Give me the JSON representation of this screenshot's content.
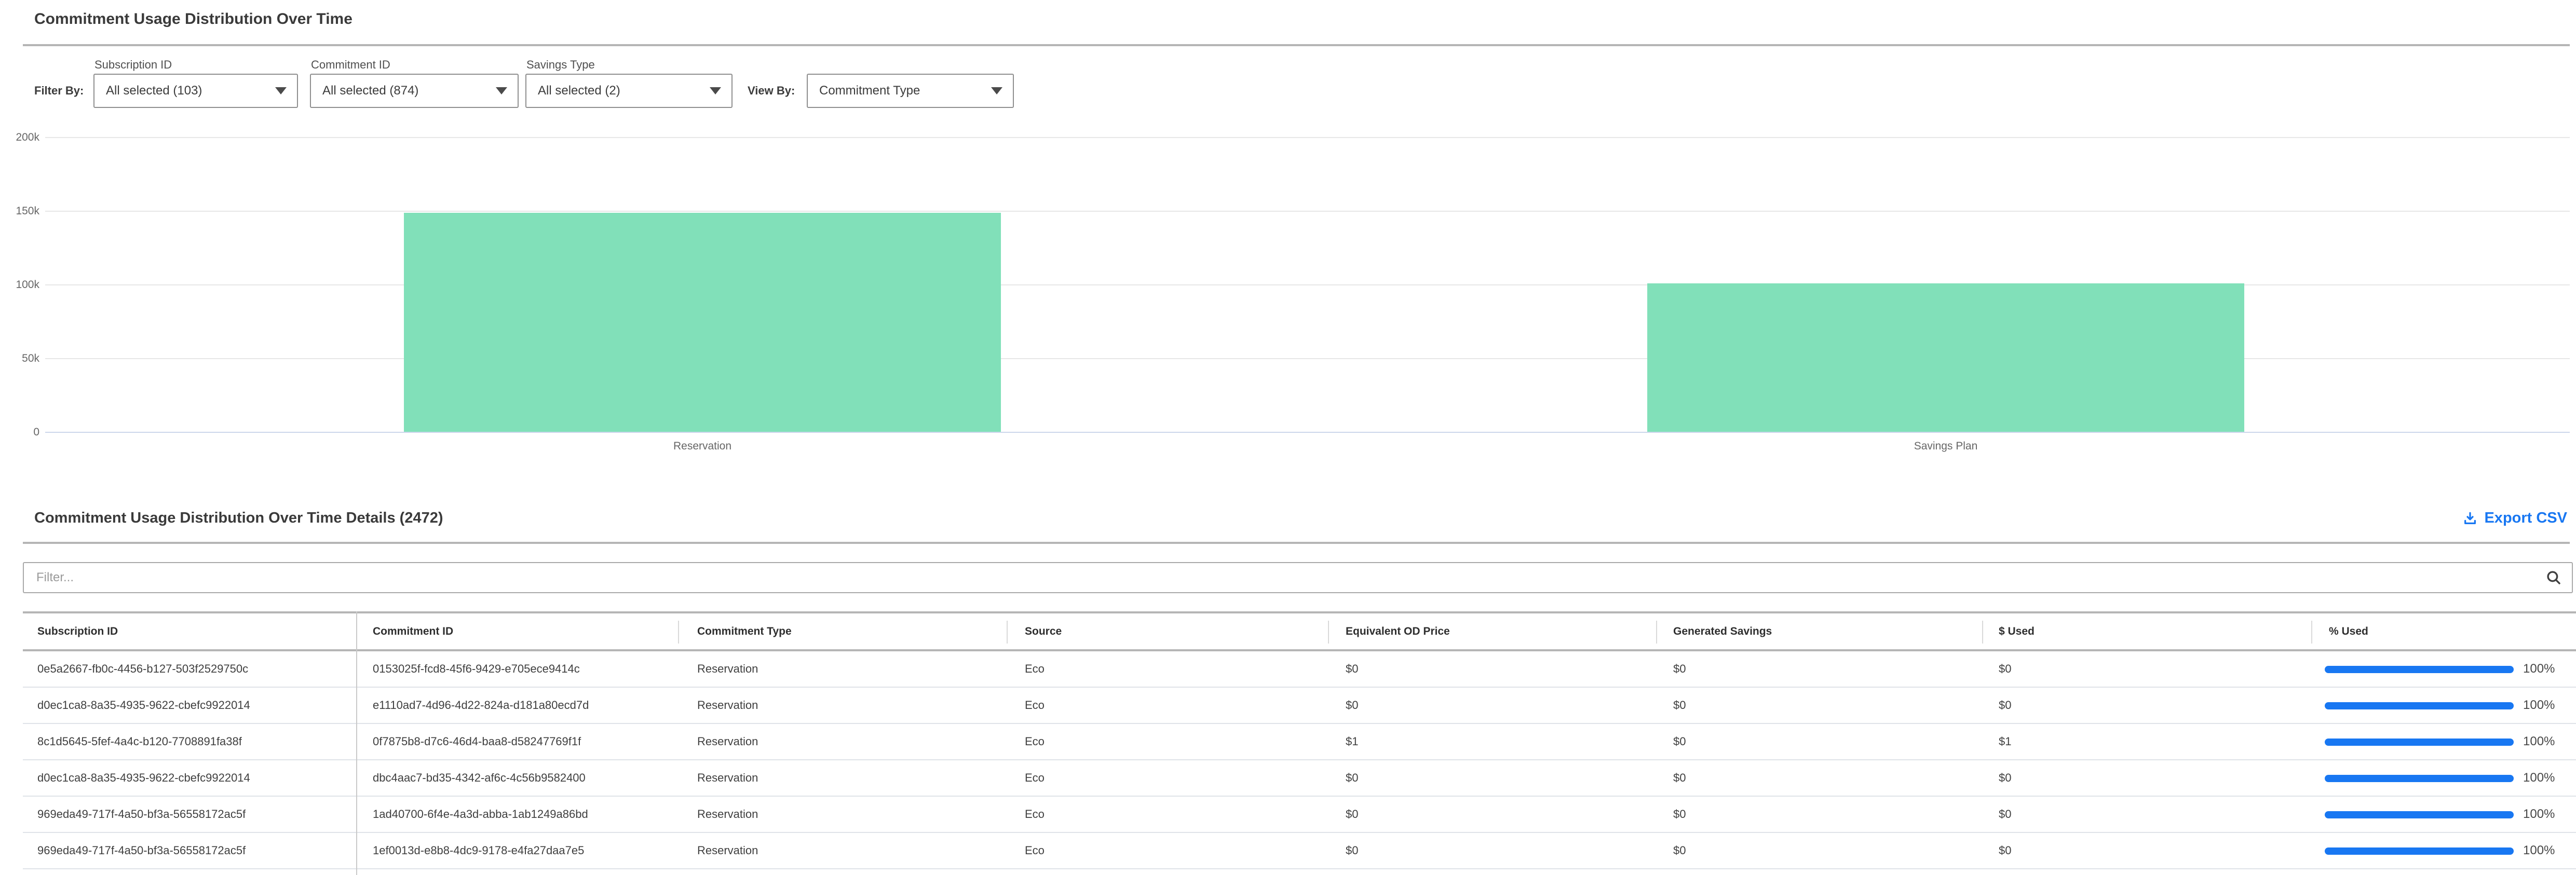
{
  "page": {
    "title": "Commitment Usage Distribution Over Time"
  },
  "filters": {
    "filter_by_label": "Filter By:",
    "view_by_label": "View By:",
    "dropdowns": [
      {
        "label": "Subscription ID",
        "value": "All selected (103)"
      },
      {
        "label": "Commitment ID",
        "value": "All selected (874)"
      },
      {
        "label": "Savings Type",
        "value": "All selected (2)"
      }
    ],
    "view_by": {
      "value": "Commitment Type"
    }
  },
  "chart_data": {
    "type": "bar",
    "title": "",
    "xlabel": "",
    "ylabel": "",
    "categories": [
      "Reservation",
      "Savings Plan"
    ],
    "values": [
      149000,
      101000
    ],
    "ylim": [
      0,
      200000
    ],
    "yticks": [
      0,
      50000,
      100000,
      150000,
      200000
    ],
    "ytick_labels": [
      "0",
      "50k",
      "100k",
      "150k",
      "200k"
    ],
    "grid": true,
    "legend": "none",
    "bar_color": "#81e0b9"
  },
  "details": {
    "title": "Commitment Usage Distribution Over Time Details (2472)",
    "export_label": "Export CSV",
    "filter_placeholder": "Filter..."
  },
  "table": {
    "headers": [
      "Subscription ID",
      "Commitment ID",
      "Commitment Type",
      "Source",
      "Equivalent OD Price",
      "Generated Savings",
      "$ Used",
      "% Used"
    ],
    "rows": [
      {
        "cells": [
          "0e5a2667-fb0c-4456-b127-503f2529750c",
          "0153025f-fcd8-45f6-9429-e705ece9414c",
          "Reservation",
          "Eco",
          "$0",
          "$0",
          "$0"
        ],
        "percent_label": "100%",
        "percent": 100
      },
      {
        "cells": [
          "d0ec1ca8-8a35-4935-9622-cbefc9922014",
          "e1110ad7-4d96-4d22-824a-d181a80ecd7d",
          "Reservation",
          "Eco",
          "$0",
          "$0",
          "$0"
        ],
        "percent_label": "100%",
        "percent": 100
      },
      {
        "cells": [
          "8c1d5645-5fef-4a4c-b120-7708891fa38f",
          "0f7875b8-d7c6-46d4-baa8-d58247769f1f",
          "Reservation",
          "Eco",
          "$1",
          "$0",
          "$1"
        ],
        "percent_label": "100%",
        "percent": 100
      },
      {
        "cells": [
          "d0ec1ca8-8a35-4935-9622-cbefc9922014",
          "dbc4aac7-bd35-4342-af6c-4c56b9582400",
          "Reservation",
          "Eco",
          "$0",
          "$0",
          "$0"
        ],
        "percent_label": "100%",
        "percent": 100
      },
      {
        "cells": [
          "969eda49-717f-4a50-bf3a-56558172ac5f",
          "1ad40700-6f4e-4a3d-abba-1ab1249a86bd",
          "Reservation",
          "Eco",
          "$0",
          "$0",
          "$0"
        ],
        "percent_label": "100%",
        "percent": 100
      },
      {
        "cells": [
          "969eda49-717f-4a50-bf3a-56558172ac5f",
          "1ef0013d-e8b8-4dc9-9178-e4fa27daa7e5",
          "Reservation",
          "Eco",
          "$0",
          "$0",
          "$0"
        ],
        "percent_label": "100%",
        "percent": 100
      }
    ]
  },
  "icons": {
    "export": "download-icon",
    "filter_search": "search-icon",
    "dropdown_caret": "caret-down-icon"
  },
  "colors": {
    "accent_blue": "#1877f2",
    "bar_green": "#81e0b9",
    "grid_line": "#e7e7e7",
    "axis_line": "#ccd6eb",
    "divider_gray": "#b5b5b5",
    "row_separator": "#dfe3e8"
  }
}
